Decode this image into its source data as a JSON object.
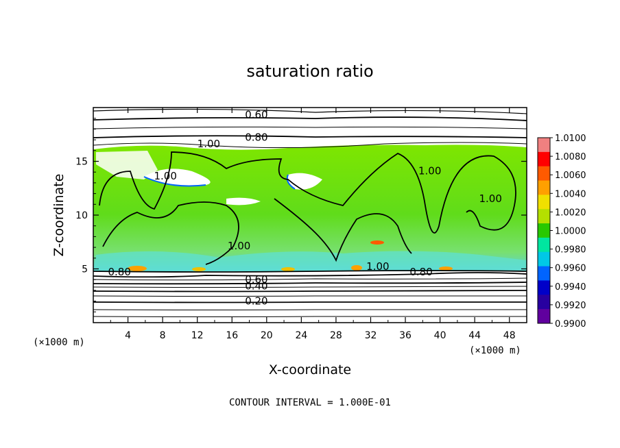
{
  "chart_data": {
    "type": "heatmap",
    "title": "saturation ratio",
    "xlabel": "X-coordinate",
    "ylabel": "Z-coordinate",
    "x_unit": "(×1000 m)",
    "y_unit": "(×1000 m)",
    "xlim": [
      0,
      50
    ],
    "ylim": [
      0,
      20
    ],
    "xticks": [
      "4",
      "8",
      "12",
      "16",
      "20",
      "24",
      "28",
      "32",
      "36",
      "40",
      "44",
      "48"
    ],
    "yticks": [
      "5",
      "10",
      "15"
    ],
    "contour_labels": [
      {
        "text": "0.60",
        "x": 17.5,
        "z": 19.0
      },
      {
        "text": "0.80",
        "x": 17.5,
        "z": 16.9
      },
      {
        "text": "1.00",
        "x": 12.0,
        "z": 16.3
      },
      {
        "text": "1.00",
        "x": 7.0,
        "z": 13.3
      },
      {
        "text": "1.00",
        "x": 37.5,
        "z": 13.8
      },
      {
        "text": "1.00",
        "x": 44.5,
        "z": 11.2
      },
      {
        "text": "1.00",
        "x": 15.5,
        "z": 6.8
      },
      {
        "text": "0.80",
        "x": 1.7,
        "z": 4.4
      },
      {
        "text": "1.00",
        "x": 31.5,
        "z": 4.9
      },
      {
        "text": "0.80",
        "x": 36.5,
        "z": 4.4
      },
      {
        "text": "0.60",
        "x": 17.5,
        "z": 3.7
      },
      {
        "text": "0.40",
        "x": 17.5,
        "z": 3.1
      },
      {
        "text": "0.20",
        "x": 17.5,
        "z": 1.7
      }
    ],
    "colorbar": {
      "labels": [
        "1.0100",
        "1.0080",
        "1.0060",
        "1.0040",
        "1.0020",
        "1.0000",
        "0.9980",
        "0.9960",
        "0.9940",
        "0.9920",
        "0.9900"
      ],
      "colors": [
        "#f08080",
        "#ff0000",
        "#ff5a00",
        "#ffa000",
        "#f0e000",
        "#b4e000",
        "#28c800",
        "#00e6a0",
        "#00c8e6",
        "#0064ff",
        "#0000c8",
        "#2800a0",
        "#60009e"
      ]
    },
    "footer": "CONTOUR INTERVAL = 1.000E-01"
  }
}
